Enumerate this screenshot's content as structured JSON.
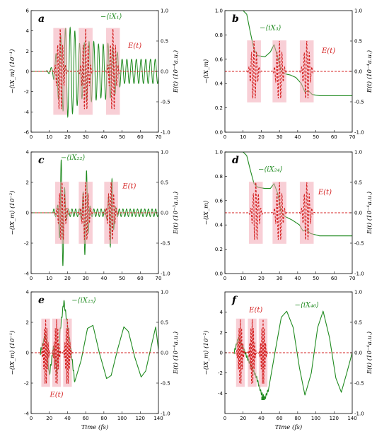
{
  "colors": {
    "green": "#1f8a1f",
    "red": "#d42020",
    "pinkband": "#f2a7b5",
    "marker": "#1f8a1f"
  },
  "chart_data": [
    {
      "type": "line",
      "letter": "a",
      "left_ylabel": "−⟨iX_m⟩ (10⁻¹)",
      "right_ylabel": "E(t) (10⁻⁴a.u.)",
      "xlabel": "",
      "xlim": [
        0,
        70
      ],
      "ylim": [
        -6,
        6
      ],
      "y2lim": [
        -1,
        1
      ],
      "x_ticks": [
        "0",
        "10",
        "20",
        "30",
        "40",
        "50",
        "60",
        "70"
      ],
      "x_tick_vals": [
        0,
        10,
        20,
        30,
        40,
        50,
        60,
        70
      ],
      "y_ticks": [
        "-6",
        "-4",
        "-2",
        "0",
        "2",
        "4",
        "6"
      ],
      "y_tick_vals": [
        -6,
        -4,
        -2,
        0,
        2,
        4,
        6
      ],
      "y2_ticks": [
        "-1.0",
        "-0.5",
        "0.0",
        "0.5",
        "1.0"
      ],
      "y2_tick_vals": [
        -1,
        -0.5,
        0,
        0.5,
        1
      ],
      "series": [
        {
          "name": "−⟨iX₁⟩",
          "kind": "oscillation",
          "envelope": [
            [
              0,
              0
            ],
            [
              8,
              0
            ],
            [
              12,
              0.5
            ],
            [
              16,
              3.5
            ],
            [
              20,
              4.5
            ],
            [
              24,
              4.0
            ],
            [
              27,
              2.6
            ],
            [
              30,
              2.9
            ],
            [
              34,
              3.0
            ],
            [
              38,
              2.6
            ],
            [
              42,
              2.8
            ],
            [
              46,
              2.3
            ],
            [
              50,
              1.2
            ],
            [
              70,
              1.2
            ]
          ],
          "period": 2.6,
          "offset": 0
        },
        {
          "name": "E(t)",
          "kind": "pulses",
          "pulses": [
            {
              "center": 16,
              "width": 4,
              "amp": 0.7
            },
            {
              "center": 30,
              "width": 4,
              "amp": 0.7
            },
            {
              "center": 45,
              "width": 4,
              "amp": 0.7
            }
          ],
          "period": 1.4
        }
      ],
      "series_labels": [
        {
          "text": "−⟨iX₁⟩",
          "x": 44,
          "y": 5.2,
          "color": "green"
        },
        {
          "text": "E(t)",
          "x": 57,
          "y": 2.3,
          "color": "red"
        }
      ]
    },
    {
      "type": "line",
      "letter": "b",
      "left_ylabel": "−⟨iX_m⟩",
      "right_ylabel": "E(t) (10⁻⁴a.u.)",
      "xlabel": "",
      "xlim": [
        0,
        70
      ],
      "ylim": [
        0,
        1
      ],
      "y2lim": [
        -1,
        1
      ],
      "x_ticks": [
        "0",
        "10",
        "20",
        "30",
        "40",
        "50",
        "60",
        "70"
      ],
      "x_tick_vals": [
        0,
        10,
        20,
        30,
        40,
        50,
        60,
        70
      ],
      "y_ticks": [
        "0.0",
        "0.2",
        "0.4",
        "0.6",
        "0.8",
        "1.0"
      ],
      "y_tick_vals": [
        0,
        0.2,
        0.4,
        0.6,
        0.8,
        1.0
      ],
      "y2_ticks": [
        "-1.0",
        "-0.5",
        "0.0",
        "0.5",
        "1.0"
      ],
      "y2_tick_vals": [
        -1,
        -0.5,
        0,
        0.5,
        1
      ],
      "series": [
        {
          "name": "−⟨iX₃⟩",
          "kind": "steps",
          "points": [
            [
              10,
              1
            ],
            [
              12,
              0.97
            ],
            [
              14,
              0.82
            ],
            [
              16,
              0.68
            ],
            [
              18,
              0.63
            ],
            [
              22,
              0.62
            ],
            [
              25,
              0.66
            ],
            [
              27,
              0.72
            ],
            [
              29,
              0.62
            ],
            [
              31,
              0.5
            ],
            [
              33,
              0.48
            ],
            [
              36,
              0.47
            ],
            [
              39,
              0.45
            ],
            [
              42,
              0.4
            ],
            [
              44,
              0.33
            ],
            [
              46,
              0.34
            ],
            [
              48,
              0.31
            ],
            [
              52,
              0.3
            ],
            [
              70,
              0.3
            ]
          ]
        },
        {
          "name": "E(t)",
          "kind": "pulses",
          "pulses": [
            {
              "center": 16,
              "width": 4,
              "amp": 0.5
            },
            {
              "center": 30,
              "width": 4,
              "amp": 0.5
            },
            {
              "center": 45,
              "width": 4,
              "amp": 0.5
            }
          ],
          "period": 1.4
        }
      ],
      "series_labels": [
        {
          "text": "−⟨iX₃⟩",
          "x": 25,
          "y": 0.84,
          "color": "green"
        },
        {
          "text": "E(t)",
          "x": 57,
          "y": 0.65,
          "color": "red"
        }
      ]
    },
    {
      "type": "line",
      "letter": "c",
      "left_ylabel": "−⟨iX_m⟩ (10⁻²)",
      "right_ylabel": "E(t) (10⁻³a.u.)",
      "xlabel": "",
      "xlim": [
        0,
        70
      ],
      "ylim": [
        -4,
        4
      ],
      "y2lim": [
        -1,
        1
      ],
      "x_ticks": [
        "0",
        "10",
        "20",
        "30",
        "40",
        "50",
        "60",
        "70"
      ],
      "x_tick_vals": [
        0,
        10,
        20,
        30,
        40,
        50,
        60,
        70
      ],
      "y_ticks": [
        "-4",
        "-2",
        "0",
        "2",
        "4"
      ],
      "y_tick_vals": [
        -4,
        -2,
        0,
        2,
        4
      ],
      "y2_ticks": [
        "-1.0",
        "-0.5",
        "0.0",
        "0.5",
        "1.0"
      ],
      "y2_tick_vals": [
        -1,
        -0.5,
        0,
        0.5,
        1
      ],
      "series": [
        {
          "name": "−⟨iX₂₂⟩",
          "kind": "bursts",
          "bursts": [
            {
              "center": 17,
              "width": 3,
              "amp": 3.6
            },
            {
              "center": 30,
              "width": 3,
              "amp": 2.8
            },
            {
              "center": 44,
              "width": 3,
              "amp": 2.2
            }
          ],
          "tail": 0.25,
          "period": 2.0
        },
        {
          "name": "E(t)",
          "kind": "pulses",
          "pulses": [
            {
              "center": 17,
              "width": 4,
              "amp": 0.5
            },
            {
              "center": 30,
              "width": 4,
              "amp": 0.5
            },
            {
              "center": 44,
              "width": 4,
              "amp": 0.5
            }
          ],
          "period": 1.4
        }
      ],
      "series_labels": [
        {
          "text": "−⟨iX₂₂⟩",
          "x": 23,
          "y": 3.5,
          "color": "green"
        },
        {
          "text": "E(t)",
          "x": 54,
          "y": 1.6,
          "color": "red"
        }
      ]
    },
    {
      "type": "line",
      "letter": "d",
      "left_ylabel": "−⟨iX_m⟩",
      "right_ylabel": "E(t) (10⁻⁴a.u.)",
      "xlabel": "",
      "xlim": [
        0,
        70
      ],
      "ylim": [
        0,
        1
      ],
      "y2lim": [
        -1,
        1
      ],
      "x_ticks": [
        "0",
        "10",
        "20",
        "30",
        "40",
        "50",
        "60",
        "70"
      ],
      "x_tick_vals": [
        0,
        10,
        20,
        30,
        40,
        50,
        60,
        70
      ],
      "y_ticks": [
        "0.0",
        "0.2",
        "0.4",
        "0.6",
        "0.8",
        "1.0"
      ],
      "y_tick_vals": [
        0,
        0.2,
        0.4,
        0.6,
        0.8,
        1.0
      ],
      "y2_ticks": [
        "-1.0",
        "-0.5",
        "0.0",
        "0.5",
        "1.0"
      ],
      "y2_tick_vals": [
        -1,
        -0.5,
        0,
        0.5,
        1
      ],
      "series": [
        {
          "name": "−⟨iX₂₄⟩",
          "kind": "steps",
          "points": [
            [
              10,
              1
            ],
            [
              12,
              0.97
            ],
            [
              14,
              0.85
            ],
            [
              16,
              0.74
            ],
            [
              18,
              0.71
            ],
            [
              22,
              0.7
            ],
            [
              25,
              0.7
            ],
            [
              27,
              0.74
            ],
            [
              29,
              0.66
            ],
            [
              31,
              0.5
            ],
            [
              33,
              0.47
            ],
            [
              37,
              0.44
            ],
            [
              41,
              0.4
            ],
            [
              43,
              0.35
            ],
            [
              45,
              0.36
            ],
            [
              47,
              0.33
            ],
            [
              52,
              0.31
            ],
            [
              70,
              0.31
            ]
          ]
        },
        {
          "name": "E(t)",
          "kind": "pulses",
          "pulses": [
            {
              "center": 17,
              "width": 4,
              "amp": 0.5
            },
            {
              "center": 30,
              "width": 4,
              "amp": 0.5
            },
            {
              "center": 45,
              "width": 4,
              "amp": 0.5
            }
          ],
          "period": 1.4
        }
      ],
      "series_labels": [
        {
          "text": "−⟨iX₂₄⟩",
          "x": 25,
          "y": 0.84,
          "color": "green"
        },
        {
          "text": "E(t)",
          "x": 55,
          "y": 0.65,
          "color": "red"
        }
      ]
    },
    {
      "type": "line",
      "letter": "e",
      "left_ylabel": "−⟨iX_m⟩ (10⁻¹)",
      "right_ylabel": "E(t) (10⁻⁴a.u.)",
      "xlabel": "Time (fs)",
      "xlim": [
        0,
        140
      ],
      "ylim": [
        -4,
        4
      ],
      "y2lim": [
        -1,
        1
      ],
      "x_ticks": [
        "0",
        "20",
        "40",
        "60",
        "80",
        "100",
        "120",
        "140"
      ],
      "x_tick_vals": [
        0,
        20,
        40,
        60,
        80,
        100,
        120,
        140
      ],
      "y_ticks": [
        "-4",
        "-2",
        "0",
        "2",
        "4"
      ],
      "y_tick_vals": [
        -4,
        -2,
        0,
        2,
        4
      ],
      "y2_ticks": [
        "-1.0",
        "-0.5",
        "0.0",
        "0.5",
        "1.0"
      ],
      "y2_tick_vals": [
        -1,
        -0.5,
        0,
        0.5,
        1
      ],
      "series": [
        {
          "name": "−⟨iX₂₅⟩",
          "kind": "wave",
          "points": [
            [
              10,
              0
            ],
            [
              16,
              1.2
            ],
            [
              20,
              -1.5
            ],
            [
              25,
              0.5
            ],
            [
              28,
              -1.3
            ],
            [
              32,
              1.5
            ],
            [
              36,
              3.4
            ],
            [
              42,
              1.0
            ],
            [
              48,
              -1.9
            ],
            [
              55,
              -0.5
            ],
            [
              62,
              1.6
            ],
            [
              68,
              1.8
            ],
            [
              75,
              0
            ],
            [
              83,
              -1.7
            ],
            [
              88,
              -1.5
            ],
            [
              95,
              0.2
            ],
            [
              102,
              1.7
            ],
            [
              107,
              1.4
            ],
            [
              114,
              -0.3
            ],
            [
              121,
              -1.6
            ],
            [
              126,
              -1.2
            ],
            [
              132,
              0.4
            ],
            [
              137,
              1.7
            ],
            [
              140,
              0.2
            ]
          ]
        },
        {
          "name": "E(t)",
          "kind": "pulses",
          "pulses": [
            {
              "center": 16,
              "width": 5,
              "amp": 0.55
            },
            {
              "center": 28,
              "width": 5,
              "amp": 0.55
            },
            {
              "center": 40,
              "width": 5,
              "amp": 0.55
            }
          ],
          "period": 1.4
        }
      ],
      "series_labels": [
        {
          "text": "−⟨iX₂₅⟩",
          "x": 58,
          "y": 3.3,
          "color": "green"
        },
        {
          "text": "E(t)",
          "x": 28,
          "y": -2.9,
          "color": "red"
        }
      ]
    },
    {
      "type": "line",
      "letter": "f",
      "left_ylabel": "−⟨iX_m⟩ (10⁻²)",
      "right_ylabel": "E(t) (10⁻⁴a.u.)",
      "xlabel": "Time (fs)",
      "xlim": [
        0,
        140
      ],
      "ylim": [
        -6,
        6
      ],
      "y2lim": [
        -1,
        1
      ],
      "x_ticks": [
        "0",
        "20",
        "40",
        "60",
        "80",
        "100",
        "120",
        "140"
      ],
      "x_tick_vals": [
        0,
        20,
        40,
        60,
        80,
        100,
        120,
        140
      ],
      "y_ticks": [
        "-4",
        "-2",
        "0",
        "2",
        "4"
      ],
      "y_tick_vals": [
        -4,
        -2,
        0,
        2,
        4
      ],
      "y2_ticks": [
        "-1.0",
        "-0.5",
        "0.0",
        "0.5",
        "1.0"
      ],
      "y2_tick_vals": [
        -1,
        -0.5,
        0,
        0.5,
        1
      ],
      "series": [
        {
          "name": "−⟨iX₄₆⟩",
          "kind": "wave",
          "points": [
            [
              10,
              0
            ],
            [
              15,
              1.5
            ],
            [
              20,
              0.5
            ],
            [
              25,
              -0.6
            ],
            [
              30,
              -1.5
            ],
            [
              35,
              -2.5
            ],
            [
              40,
              -4.0
            ],
            [
              44,
              -4.5
            ],
            [
              48,
              -3.6
            ],
            [
              55,
              0
            ],
            [
              62,
              3.5
            ],
            [
              68,
              4.1
            ],
            [
              75,
              2.5
            ],
            [
              82,
              -1.5
            ],
            [
              88,
              -4.2
            ],
            [
              95,
              -2.0
            ],
            [
              102,
              2.5
            ],
            [
              108,
              4.1
            ],
            [
              115,
              1.5
            ],
            [
              122,
              -2.5
            ],
            [
              128,
              -3.9
            ],
            [
              134,
              -2.0
            ],
            [
              140,
              0
            ]
          ]
        },
        {
          "name": "E(t)",
          "kind": "pulses",
          "pulses": [
            {
              "center": 17,
              "width": 5,
              "amp": 0.55
            },
            {
              "center": 30,
              "width": 5,
              "amp": 0.55
            },
            {
              "center": 42,
              "width": 5,
              "amp": 0.55
            }
          ],
          "period": 1.4
        }
      ],
      "series_labels": [
        {
          "text": "−⟨iX₄₆⟩",
          "x": 90,
          "y": 4.5,
          "color": "green"
        },
        {
          "text": "E(t)",
          "x": 34,
          "y": 4.0,
          "color": "red"
        }
      ],
      "marker": {
        "x": 42,
        "y": -4.5
      }
    }
  ]
}
